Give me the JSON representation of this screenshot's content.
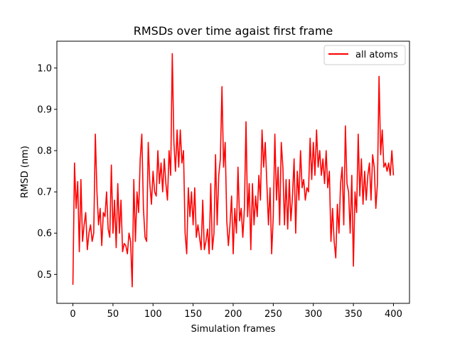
{
  "chart_data": {
    "type": "line",
    "title": "RMSDs over time agaist first frame",
    "xlabel": "Simulation frames",
    "ylabel": "RMSD (nm)",
    "xlim": [
      -20,
      420
    ],
    "ylim": [
      0.43,
      1.065
    ],
    "xticks": [
      0,
      50,
      100,
      150,
      200,
      250,
      300,
      350,
      400
    ],
    "xtick_labels": [
      "0",
      "50",
      "100",
      "150",
      "200",
      "250",
      "300",
      "350",
      "400"
    ],
    "yticks": [
      0.5,
      0.6,
      0.7,
      0.8,
      0.9,
      1.0
    ],
    "ytick_labels": [
      "0.5",
      "0.6",
      "0.7",
      "0.8",
      "0.9",
      "1.0"
    ],
    "grid": false,
    "legend_position": "top-right",
    "series": [
      {
        "name": "all atoms",
        "color": "#ff0000",
        "points": [
          [
            0,
            0.475
          ],
          [
            2,
            0.77
          ],
          [
            4,
            0.66
          ],
          [
            6,
            0.725
          ],
          [
            8,
            0.555
          ],
          [
            10,
            0.73
          ],
          [
            12,
            0.58
          ],
          [
            14,
            0.62
          ],
          [
            16,
            0.65
          ],
          [
            18,
            0.56
          ],
          [
            20,
            0.6
          ],
          [
            22,
            0.62
          ],
          [
            24,
            0.58
          ],
          [
            26,
            0.6
          ],
          [
            28,
            0.84
          ],
          [
            30,
            0.7
          ],
          [
            32,
            0.62
          ],
          [
            34,
            0.66
          ],
          [
            36,
            0.57
          ],
          [
            38,
            0.65
          ],
          [
            40,
            0.64
          ],
          [
            42,
            0.7
          ],
          [
            44,
            0.61
          ],
          [
            46,
            0.59
          ],
          [
            48,
            0.765
          ],
          [
            50,
            0.6
          ],
          [
            52,
            0.68
          ],
          [
            54,
            0.565
          ],
          [
            56,
            0.72
          ],
          [
            58,
            0.6
          ],
          [
            60,
            0.68
          ],
          [
            62,
            0.555
          ],
          [
            64,
            0.575
          ],
          [
            66,
            0.57
          ],
          [
            68,
            0.55
          ],
          [
            70,
            0.6
          ],
          [
            72,
            0.58
          ],
          [
            74,
            0.47
          ],
          [
            76,
            0.73
          ],
          [
            78,
            0.58
          ],
          [
            80,
            0.7
          ],
          [
            82,
            0.65
          ],
          [
            84,
            0.78
          ],
          [
            86,
            0.84
          ],
          [
            88,
            0.66
          ],
          [
            90,
            0.59
          ],
          [
            92,
            0.58
          ],
          [
            94,
            0.82
          ],
          [
            96,
            0.72
          ],
          [
            98,
            0.67
          ],
          [
            100,
            0.75
          ],
          [
            102,
            0.7
          ],
          [
            104,
            0.69
          ],
          [
            106,
            0.8
          ],
          [
            108,
            0.72
          ],
          [
            110,
            0.77
          ],
          [
            112,
            0.7
          ],
          [
            114,
            0.78
          ],
          [
            116,
            0.72
          ],
          [
            118,
            0.68
          ],
          [
            120,
            0.8
          ],
          [
            122,
            0.74
          ],
          [
            124,
            1.035
          ],
          [
            126,
            0.82
          ],
          [
            128,
            0.75
          ],
          [
            130,
            0.85
          ],
          [
            132,
            0.76
          ],
          [
            134,
            0.85
          ],
          [
            136,
            0.77
          ],
          [
            138,
            0.8
          ],
          [
            140,
            0.6
          ],
          [
            142,
            0.55
          ],
          [
            144,
            0.71
          ],
          [
            146,
            0.64
          ],
          [
            148,
            0.7
          ],
          [
            150,
            0.62
          ],
          [
            152,
            0.71
          ],
          [
            154,
            0.59
          ],
          [
            156,
            0.62
          ],
          [
            158,
            0.59
          ],
          [
            160,
            0.56
          ],
          [
            162,
            0.68
          ],
          [
            164,
            0.56
          ],
          [
            166,
            0.58
          ],
          [
            168,
            0.61
          ],
          [
            170,
            0.55
          ],
          [
            172,
            0.72
          ],
          [
            174,
            0.56
          ],
          [
            176,
            0.6
          ],
          [
            178,
            0.79
          ],
          [
            180,
            0.62
          ],
          [
            182,
            0.74
          ],
          [
            184,
            0.78
          ],
          [
            186,
            0.955
          ],
          [
            188,
            0.76
          ],
          [
            190,
            0.82
          ],
          [
            192,
            0.63
          ],
          [
            194,
            0.57
          ],
          [
            196,
            0.62
          ],
          [
            198,
            0.69
          ],
          [
            200,
            0.55
          ],
          [
            202,
            0.66
          ],
          [
            204,
            0.6
          ],
          [
            206,
            0.76
          ],
          [
            208,
            0.63
          ],
          [
            210,
            0.66
          ],
          [
            212,
            0.59
          ],
          [
            214,
            0.66
          ],
          [
            216,
            0.87
          ],
          [
            218,
            0.64
          ],
          [
            220,
            0.72
          ],
          [
            222,
            0.56
          ],
          [
            224,
            0.72
          ],
          [
            226,
            0.62
          ],
          [
            228,
            0.69
          ],
          [
            230,
            0.64
          ],
          [
            232,
            0.74
          ],
          [
            234,
            0.68
          ],
          [
            236,
            0.85
          ],
          [
            238,
            0.76
          ],
          [
            240,
            0.82
          ],
          [
            242,
            0.72
          ],
          [
            244,
            0.62
          ],
          [
            246,
            0.71
          ],
          [
            248,
            0.55
          ],
          [
            250,
            0.64
          ],
          [
            252,
            0.84
          ],
          [
            254,
            0.68
          ],
          [
            256,
            0.76
          ],
          [
            258,
            0.62
          ],
          [
            260,
            0.82
          ],
          [
            262,
            0.76
          ],
          [
            264,
            0.62
          ],
          [
            266,
            0.73
          ],
          [
            268,
            0.61
          ],
          [
            270,
            0.73
          ],
          [
            272,
            0.63
          ],
          [
            274,
            0.69
          ],
          [
            276,
            0.78
          ],
          [
            278,
            0.6
          ],
          [
            280,
            0.75
          ],
          [
            282,
            0.68
          ],
          [
            284,
            0.8
          ],
          [
            286,
            0.71
          ],
          [
            288,
            0.73
          ],
          [
            290,
            0.68
          ],
          [
            292,
            0.71
          ],
          [
            294,
            0.7
          ],
          [
            296,
            0.83
          ],
          [
            298,
            0.73
          ],
          [
            300,
            0.82
          ],
          [
            302,
            0.74
          ],
          [
            304,
            0.85
          ],
          [
            306,
            0.76
          ],
          [
            308,
            0.8
          ],
          [
            310,
            0.74
          ],
          [
            312,
            0.78
          ],
          [
            314,
            0.72
          ],
          [
            316,
            0.8
          ],
          [
            318,
            0.71
          ],
          [
            320,
            0.75
          ],
          [
            322,
            0.58
          ],
          [
            324,
            0.66
          ],
          [
            326,
            0.58
          ],
          [
            328,
            0.54
          ],
          [
            330,
            0.67
          ],
          [
            332,
            0.6
          ],
          [
            334,
            0.72
          ],
          [
            336,
            0.76
          ],
          [
            338,
            0.62
          ],
          [
            340,
            0.86
          ],
          [
            342,
            0.72
          ],
          [
            344,
            0.7
          ],
          [
            346,
            0.6
          ],
          [
            348,
            0.74
          ],
          [
            350,
            0.52
          ],
          [
            352,
            0.7
          ],
          [
            354,
            0.65
          ],
          [
            356,
            0.84
          ],
          [
            358,
            0.69
          ],
          [
            360,
            0.78
          ],
          [
            362,
            0.67
          ],
          [
            364,
            0.75
          ],
          [
            366,
            0.68
          ],
          [
            368,
            0.74
          ],
          [
            370,
            0.77
          ],
          [
            372,
            0.68
          ],
          [
            374,
            0.79
          ],
          [
            376,
            0.76
          ],
          [
            378,
            0.66
          ],
          [
            380,
            0.72
          ],
          [
            382,
            0.98
          ],
          [
            384,
            0.79
          ],
          [
            386,
            0.85
          ],
          [
            388,
            0.76
          ],
          [
            390,
            0.77
          ],
          [
            392,
            0.75
          ],
          [
            394,
            0.77
          ],
          [
            396,
            0.74
          ],
          [
            398,
            0.8
          ],
          [
            400,
            0.74
          ]
        ]
      }
    ]
  }
}
